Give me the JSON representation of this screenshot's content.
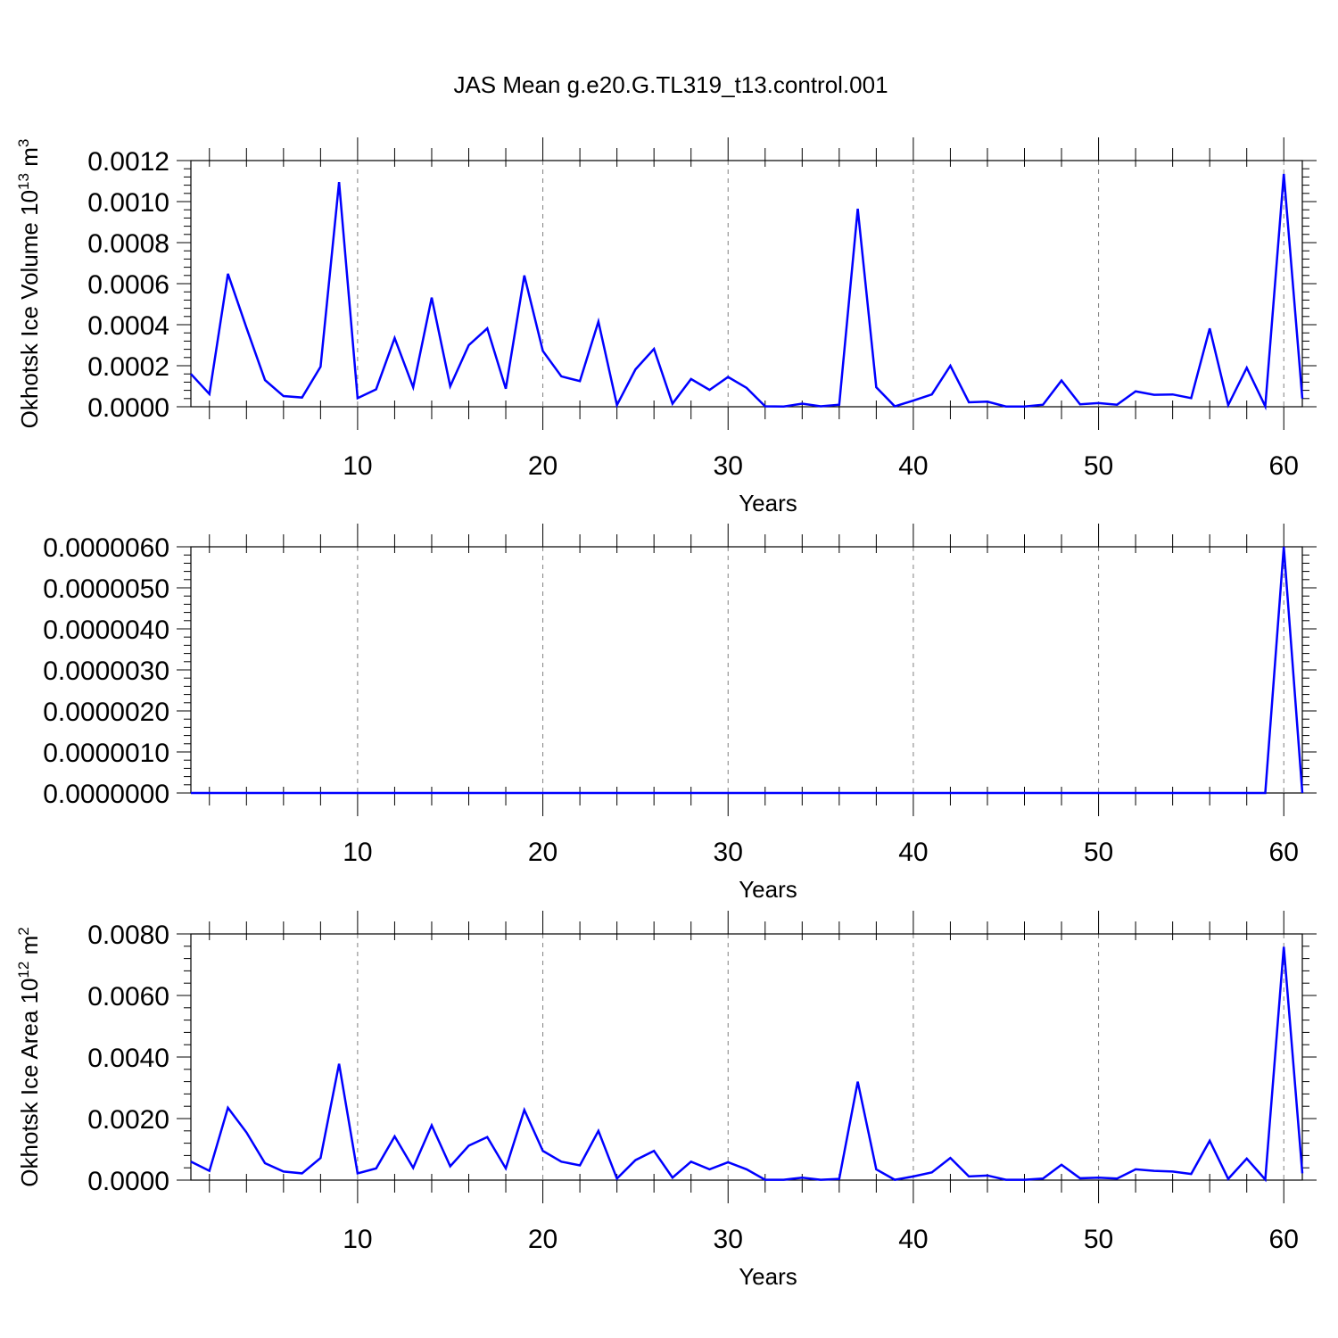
{
  "title": "JAS Mean g.e20.G.TL319_t13.control.001",
  "colors": {
    "line": "#0000ff",
    "axis": "#000000",
    "grid": "#808080"
  },
  "chart_data": [
    {
      "type": "line",
      "xlabel": "Years",
      "ylabel": {
        "text": "Okhotsk Ice Volume 10",
        "exp": "13",
        "unit": " m",
        "unit_exp": "3"
      },
      "xlim": [
        1,
        61
      ],
      "ylim": [
        0,
        0.0012
      ],
      "xticks": [
        10,
        20,
        30,
        40,
        50,
        60
      ],
      "yticks": [
        "0.0000",
        "0.0002",
        "0.0004",
        "0.0006",
        "0.0008",
        "0.0010",
        "0.0012"
      ],
      "grid": "dashed vertical at major x ticks",
      "x": [
        1,
        2,
        3,
        4,
        5,
        6,
        7,
        8,
        9,
        10,
        11,
        12,
        13,
        14,
        15,
        16,
        17,
        18,
        19,
        20,
        21,
        22,
        23,
        24,
        25,
        26,
        27,
        28,
        29,
        30,
        31,
        32,
        33,
        34,
        35,
        36,
        37,
        38,
        39,
        40,
        41,
        42,
        43,
        44,
        45,
        46,
        47,
        48,
        49,
        50,
        51,
        52,
        53,
        54,
        55,
        56,
        57,
        58,
        59,
        60,
        61
      ],
      "values": [
        0.00016,
        6.2e-05,
        0.000648,
        0.000385,
        0.00013,
        5.2e-05,
        4.5e-05,
        0.000195,
        0.001095,
        4.2e-05,
        8.5e-05,
        0.000335,
        9.5e-05,
        0.000532,
        0.0001,
        0.0003,
        0.000382,
        8.8e-05,
        0.00064,
        0.000272,
        0.000148,
        0.000125,
        0.000415,
        8e-06,
        0.000182,
        0.000282,
        1.5e-05,
        0.000135,
        8.2e-05,
        0.000145,
        9.2e-05,
        2e-06,
        1e-06,
        1.5e-05,
        2e-06,
        1e-05,
        0.000965,
        9.5e-05,
        2e-06,
        3e-05,
        6e-05,
        0.0002,
        2.2e-05,
        2.5e-05,
        1e-06,
        1e-06,
        1e-05,
        0.000128,
        1.2e-05,
        1.8e-05,
        1e-05,
        7.5e-05,
        5.8e-05,
        6e-05,
        4.2e-05,
        0.000382,
        8e-06,
        0.00019,
        2e-06,
        0.001135,
        4e-05
      ]
    },
    {
      "type": "line",
      "xlabel": "Years",
      "ylabel": null,
      "xlim": [
        1,
        61
      ],
      "ylim": [
        0,
        6e-06
      ],
      "xticks": [
        10,
        20,
        30,
        40,
        50,
        60
      ],
      "yticks": [
        "0.0000000",
        "0.0000010",
        "0.0000020",
        "0.0000030",
        "0.0000040",
        "0.0000050",
        "0.0000060"
      ],
      "grid": "dashed vertical at major x ticks",
      "x": [
        1,
        2,
        3,
        4,
        5,
        6,
        7,
        8,
        9,
        10,
        11,
        12,
        13,
        14,
        15,
        16,
        17,
        18,
        19,
        20,
        21,
        22,
        23,
        24,
        25,
        26,
        27,
        28,
        29,
        30,
        31,
        32,
        33,
        34,
        35,
        36,
        37,
        38,
        39,
        40,
        41,
        42,
        43,
        44,
        45,
        46,
        47,
        48,
        49,
        50,
        51,
        52,
        53,
        54,
        55,
        56,
        57,
        58,
        59,
        60,
        61
      ],
      "values": [
        0,
        0,
        0,
        0,
        0,
        0,
        0,
        0,
        0,
        0,
        0,
        0,
        0,
        0,
        0,
        0,
        0,
        0,
        0,
        0,
        0,
        0,
        0,
        0,
        0,
        0,
        0,
        0,
        0,
        0,
        0,
        0,
        0,
        0,
        0,
        0,
        0,
        0,
        0,
        0,
        0,
        0,
        0,
        0,
        0,
        0,
        0,
        0,
        0,
        0,
        0,
        0,
        0,
        0,
        0,
        0,
        0,
        0,
        0,
        6e-06,
        0
      ]
    },
    {
      "type": "line",
      "xlabel": "Years",
      "ylabel": {
        "text": "Okhotsk Ice Area 10",
        "exp": "12",
        "unit": " m",
        "unit_exp": "2"
      },
      "xlim": [
        1,
        61
      ],
      "ylim": [
        0,
        0.008
      ],
      "xticks": [
        10,
        20,
        30,
        40,
        50,
        60
      ],
      "yticks": [
        "0.0000",
        "0.0020",
        "0.0040",
        "0.0060",
        "0.0080"
      ],
      "grid": "dashed vertical at major x ticks",
      "x": [
        1,
        2,
        3,
        4,
        5,
        6,
        7,
        8,
        9,
        10,
        11,
        12,
        13,
        14,
        15,
        16,
        17,
        18,
        19,
        20,
        21,
        22,
        23,
        24,
        25,
        26,
        27,
        28,
        29,
        30,
        31,
        32,
        33,
        34,
        35,
        36,
        37,
        38,
        39,
        40,
        41,
        42,
        43,
        44,
        45,
        46,
        47,
        48,
        49,
        50,
        51,
        52,
        53,
        54,
        55,
        56,
        57,
        58,
        59,
        60,
        61
      ],
      "values": [
        0.0006,
        0.0003,
        0.00235,
        0.00155,
        0.00055,
        0.00028,
        0.00022,
        0.00072,
        0.00378,
        0.00022,
        0.00038,
        0.00142,
        0.0004,
        0.00178,
        0.00045,
        0.00112,
        0.0014,
        0.00038,
        0.00228,
        0.00095,
        0.0006,
        0.00048,
        0.0016,
        5e-05,
        0.00065,
        0.00095,
        8e-05,
        0.0006,
        0.00035,
        0.00058,
        0.00035,
        1e-05,
        1e-05,
        8e-05,
        1e-05,
        4e-05,
        0.0032,
        0.00035,
        1e-05,
        0.00012,
        0.00025,
        0.00072,
        0.00012,
        0.00015,
        1e-05,
        1e-05,
        5e-05,
        0.0005,
        6e-05,
        8e-05,
        5e-05,
        0.00035,
        0.0003,
        0.00028,
        0.0002,
        0.00128,
        4e-05,
        0.0007,
        2e-05,
        0.00758,
        0.00022
      ]
    }
  ]
}
